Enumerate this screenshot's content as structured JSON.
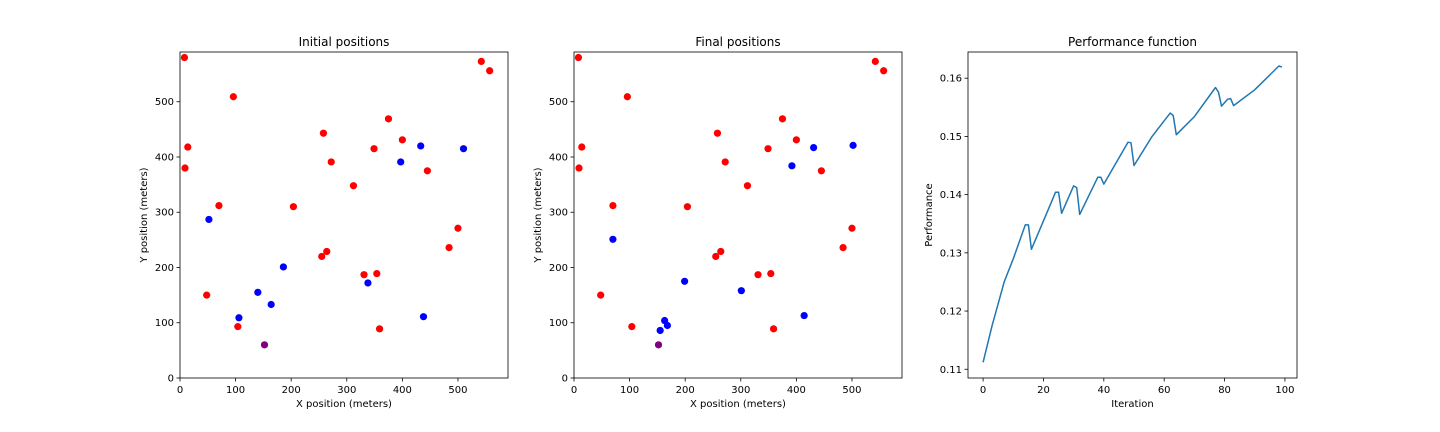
{
  "chart_data": [
    {
      "type": "scatter",
      "title": "Initial positions",
      "xlabel": "X position (meters)",
      "ylabel": "Y position (meters)",
      "xlim": [
        0,
        590
      ],
      "ylim": [
        0,
        590
      ],
      "xticks": [
        0,
        100,
        200,
        300,
        400,
        500
      ],
      "yticks": [
        0,
        100,
        200,
        300,
        400,
        500
      ],
      "grid": false,
      "colors": {
        "red": "#ff0000",
        "blue": "#0000ff",
        "purple": "#800080"
      },
      "points": [
        {
          "x": 8,
          "y": 580,
          "color": "red"
        },
        {
          "x": 14,
          "y": 418,
          "color": "red"
        },
        {
          "x": 9,
          "y": 380,
          "color": "red"
        },
        {
          "x": 96,
          "y": 509,
          "color": "red"
        },
        {
          "x": 70,
          "y": 312,
          "color": "red"
        },
        {
          "x": 48,
          "y": 150,
          "color": "red"
        },
        {
          "x": 104,
          "y": 93,
          "color": "red"
        },
        {
          "x": 204,
          "y": 310,
          "color": "red"
        },
        {
          "x": 258,
          "y": 443,
          "color": "red"
        },
        {
          "x": 272,
          "y": 391,
          "color": "red"
        },
        {
          "x": 312,
          "y": 348,
          "color": "red"
        },
        {
          "x": 349,
          "y": 415,
          "color": "red"
        },
        {
          "x": 375,
          "y": 469,
          "color": "red"
        },
        {
          "x": 400,
          "y": 431,
          "color": "red"
        },
        {
          "x": 445,
          "y": 375,
          "color": "red"
        },
        {
          "x": 264,
          "y": 229,
          "color": "red"
        },
        {
          "x": 255,
          "y": 220,
          "color": "red"
        },
        {
          "x": 331,
          "y": 187,
          "color": "red"
        },
        {
          "x": 354,
          "y": 189,
          "color": "red"
        },
        {
          "x": 359,
          "y": 89,
          "color": "red"
        },
        {
          "x": 484,
          "y": 236,
          "color": "red"
        },
        {
          "x": 500,
          "y": 271,
          "color": "red"
        },
        {
          "x": 542,
          "y": 573,
          "color": "red"
        },
        {
          "x": 557,
          "y": 556,
          "color": "red"
        },
        {
          "x": 52,
          "y": 287,
          "color": "blue"
        },
        {
          "x": 106,
          "y": 109,
          "color": "blue"
        },
        {
          "x": 140,
          "y": 155,
          "color": "blue"
        },
        {
          "x": 164,
          "y": 133,
          "color": "blue"
        },
        {
          "x": 186,
          "y": 201,
          "color": "blue"
        },
        {
          "x": 338,
          "y": 172,
          "color": "blue"
        },
        {
          "x": 397,
          "y": 391,
          "color": "blue"
        },
        {
          "x": 433,
          "y": 420,
          "color": "blue"
        },
        {
          "x": 438,
          "y": 111,
          "color": "blue"
        },
        {
          "x": 510,
          "y": 415,
          "color": "blue"
        },
        {
          "x": 152,
          "y": 60,
          "color": "purple"
        }
      ]
    },
    {
      "type": "scatter",
      "title": "Final positions",
      "xlabel": "X position (meters)",
      "ylabel": "Y position (meters)",
      "xlim": [
        0,
        590
      ],
      "ylim": [
        0,
        590
      ],
      "xticks": [
        0,
        100,
        200,
        300,
        400,
        500
      ],
      "yticks": [
        0,
        100,
        200,
        300,
        400,
        500
      ],
      "grid": false,
      "colors": {
        "red": "#ff0000",
        "blue": "#0000ff",
        "purple": "#800080"
      },
      "points": [
        {
          "x": 8,
          "y": 580,
          "color": "red"
        },
        {
          "x": 14,
          "y": 418,
          "color": "red"
        },
        {
          "x": 9,
          "y": 380,
          "color": "red"
        },
        {
          "x": 96,
          "y": 509,
          "color": "red"
        },
        {
          "x": 70,
          "y": 312,
          "color": "red"
        },
        {
          "x": 48,
          "y": 150,
          "color": "red"
        },
        {
          "x": 104,
          "y": 93,
          "color": "red"
        },
        {
          "x": 204,
          "y": 310,
          "color": "red"
        },
        {
          "x": 258,
          "y": 443,
          "color": "red"
        },
        {
          "x": 272,
          "y": 391,
          "color": "red"
        },
        {
          "x": 312,
          "y": 348,
          "color": "red"
        },
        {
          "x": 349,
          "y": 415,
          "color": "red"
        },
        {
          "x": 375,
          "y": 469,
          "color": "red"
        },
        {
          "x": 400,
          "y": 431,
          "color": "red"
        },
        {
          "x": 445,
          "y": 375,
          "color": "red"
        },
        {
          "x": 264,
          "y": 229,
          "color": "red"
        },
        {
          "x": 255,
          "y": 220,
          "color": "red"
        },
        {
          "x": 331,
          "y": 187,
          "color": "red"
        },
        {
          "x": 354,
          "y": 189,
          "color": "red"
        },
        {
          "x": 359,
          "y": 89,
          "color": "red"
        },
        {
          "x": 484,
          "y": 236,
          "color": "red"
        },
        {
          "x": 500,
          "y": 271,
          "color": "red"
        },
        {
          "x": 542,
          "y": 573,
          "color": "red"
        },
        {
          "x": 557,
          "y": 556,
          "color": "red"
        },
        {
          "x": 70,
          "y": 251,
          "color": "blue"
        },
        {
          "x": 155,
          "y": 86,
          "color": "blue"
        },
        {
          "x": 163,
          "y": 104,
          "color": "blue"
        },
        {
          "x": 168,
          "y": 95,
          "color": "blue"
        },
        {
          "x": 199,
          "y": 175,
          "color": "blue"
        },
        {
          "x": 301,
          "y": 158,
          "color": "blue"
        },
        {
          "x": 392,
          "y": 384,
          "color": "blue"
        },
        {
          "x": 431,
          "y": 417,
          "color": "blue"
        },
        {
          "x": 414,
          "y": 113,
          "color": "blue"
        },
        {
          "x": 502,
          "y": 421,
          "color": "blue"
        },
        {
          "x": 152,
          "y": 60,
          "color": "purple"
        }
      ]
    },
    {
      "type": "line",
      "title": "Performance function",
      "xlabel": "Iteration",
      "ylabel": "Performance",
      "xlim": [
        -5,
        104
      ],
      "ylim": [
        0.1085,
        0.1645
      ],
      "xticks": [
        0,
        20,
        40,
        60,
        80,
        100
      ],
      "yticks": [
        0.11,
        0.12,
        0.13,
        0.14,
        0.15,
        0.16
      ],
      "ytick_labels": [
        "0.11",
        "0.12",
        "0.13",
        "0.14",
        "0.15",
        "0.16"
      ],
      "grid": false,
      "colors": {
        "line": "#1f77b4"
      },
      "x": [
        0,
        3,
        7,
        10,
        14,
        15,
        16,
        20,
        24,
        25,
        26,
        30,
        31,
        32,
        38,
        39,
        40,
        48,
        49,
        50,
        56,
        62,
        63,
        64,
        70,
        77,
        78,
        79,
        81,
        82,
        83,
        90,
        98,
        99
      ],
      "y": [
        0.1112,
        0.1175,
        0.125,
        0.129,
        0.1348,
        0.1348,
        0.1306,
        0.1355,
        0.1404,
        0.1404,
        0.1368,
        0.1415,
        0.1412,
        0.1366,
        0.143,
        0.143,
        0.1418,
        0.149,
        0.1489,
        0.145,
        0.15,
        0.154,
        0.1536,
        0.1503,
        0.1534,
        0.1584,
        0.1576,
        0.1552,
        0.1564,
        0.1565,
        0.1553,
        0.158,
        0.1621,
        0.1619
      ]
    }
  ]
}
